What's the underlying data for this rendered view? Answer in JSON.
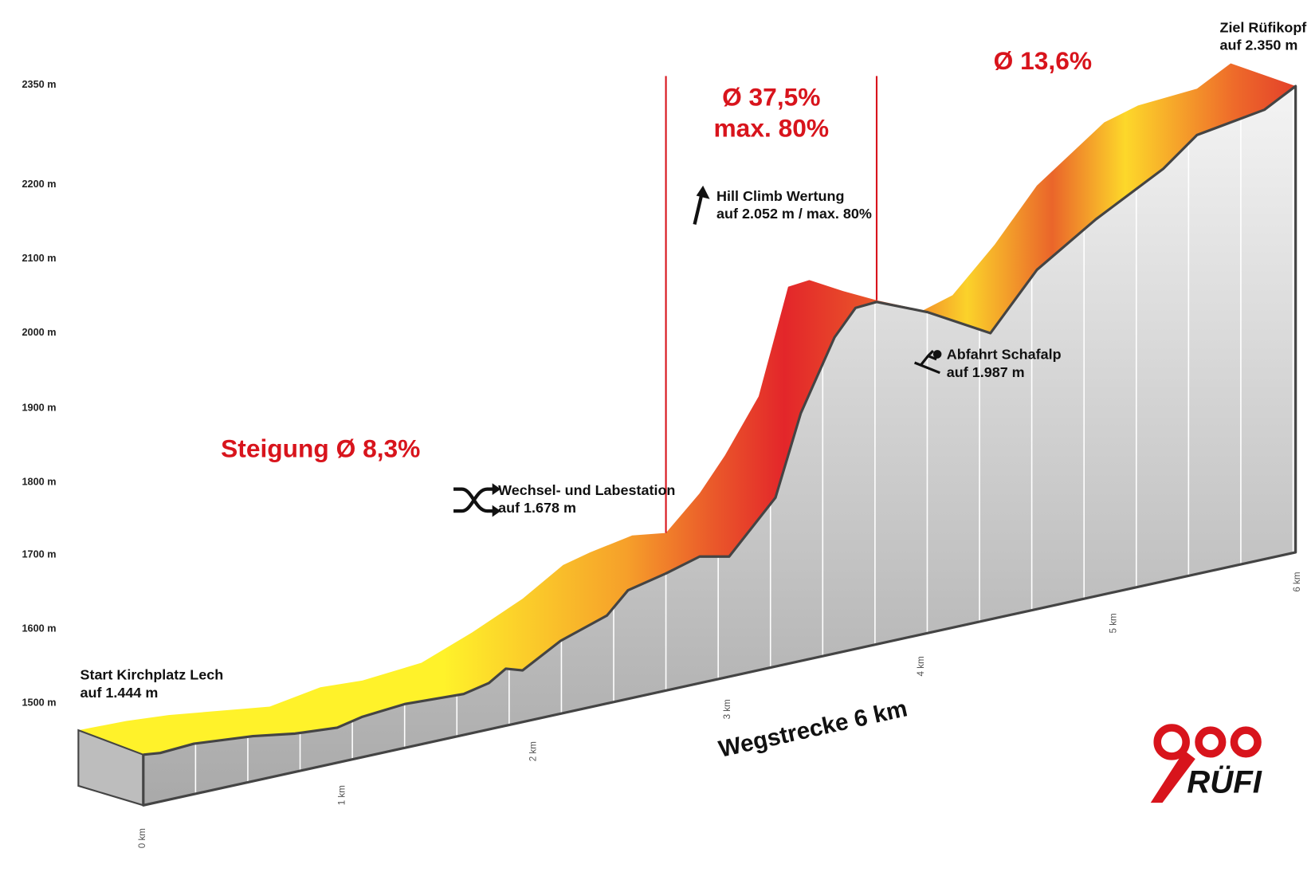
{
  "y_axis_labels": [
    "2350 m",
    "2200 m",
    "2100 m",
    "2000 m",
    "1900 m",
    "1800 m",
    "1700 m",
    "1600 m",
    "1500 m"
  ],
  "km_labels": [
    "0 km",
    "1 km",
    "2 km",
    "3 km",
    "4 km",
    "5 km",
    "6 km"
  ],
  "gradients": {
    "first": "Steigung Ø 8,3%",
    "second_avg": "Ø 37,5%",
    "second_max": "max. 80%",
    "third": "Ø 13,6%"
  },
  "annotations": {
    "start": {
      "title": "Start Kirchplatz Lech",
      "sub": "auf 1.444 m"
    },
    "transition": {
      "title": "Wechsel- und Labestation",
      "sub": "auf 1.678 m"
    },
    "hill_climb": {
      "title": "Hill Climb Wertung",
      "sub": "auf 2.052 m / max. 80%"
    },
    "descent": {
      "title": "Abfahrt Schafalp",
      "sub": "auf 1.987 m"
    },
    "finish": {
      "title": "Ziel Rüfikopf",
      "sub": "auf 2.350 m"
    }
  },
  "axis_title": "Wegstrecke 6 km",
  "logo": "RÜFI"
}
